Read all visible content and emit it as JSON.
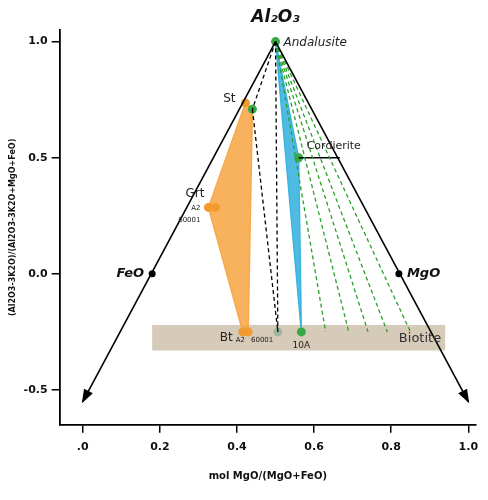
{
  "chart_data": {
    "type": "scatter",
    "x_label": "mol MgO/(MgO+FeO)",
    "y_label": "(Al2O3-3K2O)/(Al2O3-3K2O+MgO+FeO)",
    "xlim": [
      -0.06,
      1.02
    ],
    "ylim": [
      -0.65,
      1.05
    ],
    "xticks": [
      {
        "value": 0,
        "label": ".0"
      },
      0.2,
      0.4,
      0.6,
      0.8,
      {
        "value": 1,
        "label": "1.0"
      }
    ],
    "yticks": [
      -0.5,
      {
        "value": 0,
        "label": "0.0"
      },
      0.5,
      {
        "value": 1,
        "label": "1.0"
      }
    ],
    "grid": false,
    "triangle": {
      "apex": [
        0.5,
        1.0
      ],
      "ends": [
        [
          0.0,
          -0.55
        ],
        [
          1.0,
          -0.55
        ]
      ],
      "color": "#000000"
    },
    "vertices": [
      {
        "label": "Al₂O₃",
        "x": 0.5,
        "y": 1.0
      },
      {
        "label": "FeO",
        "x": 0.18,
        "y": 0.0
      },
      {
        "label": "MgO",
        "x": 0.82,
        "y": 0.0
      }
    ],
    "biotite_band": {
      "label": "Biotite",
      "x": [
        0.18,
        0.94
      ],
      "y": [
        -0.33,
        -0.22
      ],
      "color": "#d6cbb9"
    },
    "fields": [
      {
        "color": "#f7a94b",
        "points": [
          [
            0.422,
            0.736
          ],
          [
            0.326,
            0.286
          ],
          [
            0.415,
            -0.25
          ],
          [
            0.429,
            -0.25
          ],
          [
            0.44,
            0.709
          ]
        ]
      },
      {
        "color": "#3cb4e0",
        "points": [
          [
            0.5,
            1.0
          ],
          [
            0.56,
            0.5
          ],
          [
            0.567,
            -0.25
          ]
        ]
      }
    ],
    "tie_lines": [
      {
        "color": "#000000",
        "line_style": "dashed",
        "points": [
          [
            0.5,
            1.0
          ],
          [
            0.44,
            0.709
          ]
        ]
      },
      {
        "color": "#000000",
        "line_style": "dashed",
        "points": [
          [
            0.5,
            1.0
          ],
          [
            0.506,
            -0.25
          ]
        ]
      },
      {
        "color": "#000000",
        "line_style": "dashed",
        "points": [
          [
            0.44,
            0.709
          ],
          [
            0.506,
            -0.25
          ]
        ]
      },
      {
        "color": "#2aa02a",
        "line_style": "dashed",
        "points": [
          [
            0.5,
            1.0
          ],
          [
            0.63,
            -0.25
          ]
        ]
      },
      {
        "color": "#2aa02a",
        "line_style": "dashed",
        "points": [
          [
            0.5,
            1.0
          ],
          [
            0.69,
            -0.25
          ]
        ]
      },
      {
        "color": "#2aa02a",
        "line_style": "dashed",
        "points": [
          [
            0.5,
            1.0
          ],
          [
            0.74,
            -0.25
          ]
        ]
      },
      {
        "color": "#2aa02a",
        "line_style": "dashed",
        "points": [
          [
            0.5,
            1.0
          ],
          [
            0.79,
            -0.25
          ]
        ]
      },
      {
        "color": "#2aa02a",
        "line_style": "dashed",
        "points": [
          [
            0.5,
            1.0
          ],
          [
            0.85,
            -0.25
          ]
        ]
      },
      {
        "color": "#000000",
        "line_style": "solid",
        "points": [
          [
            0.56,
            0.5
          ],
          [
            0.667,
            0.5
          ]
        ]
      }
    ],
    "points": [
      {
        "x": 0.5,
        "y": 1.0,
        "color": "#3aa845",
        "label": "Andalusite"
      },
      {
        "x": 0.422,
        "y": 0.736,
        "color": "#f39a2e",
        "label": "St"
      },
      {
        "x": 0.44,
        "y": 0.709,
        "color": "#3aa845"
      },
      {
        "x": 0.326,
        "y": 0.286,
        "color": "#f39a2e",
        "label": "Grt",
        "sublabels": [
          "A2",
          "60001"
        ]
      },
      {
        "x": 0.344,
        "y": 0.286,
        "color": "#f39a2e"
      },
      {
        "x": 0.415,
        "y": -0.25,
        "color": "#f39a2e",
        "label": "Bt",
        "sublabels": [
          "A2",
          "60001"
        ]
      },
      {
        "x": 0.429,
        "y": -0.25,
        "color": "#f39a2e"
      },
      {
        "x": 0.506,
        "y": -0.25,
        "color": "#9fb59f"
      },
      {
        "x": 0.567,
        "y": -0.25,
        "color": "#3aa845",
        "label": "10A"
      },
      {
        "x": 0.56,
        "y": 0.5,
        "color": "#3aa845",
        "label": "Cordierite"
      }
    ]
  }
}
